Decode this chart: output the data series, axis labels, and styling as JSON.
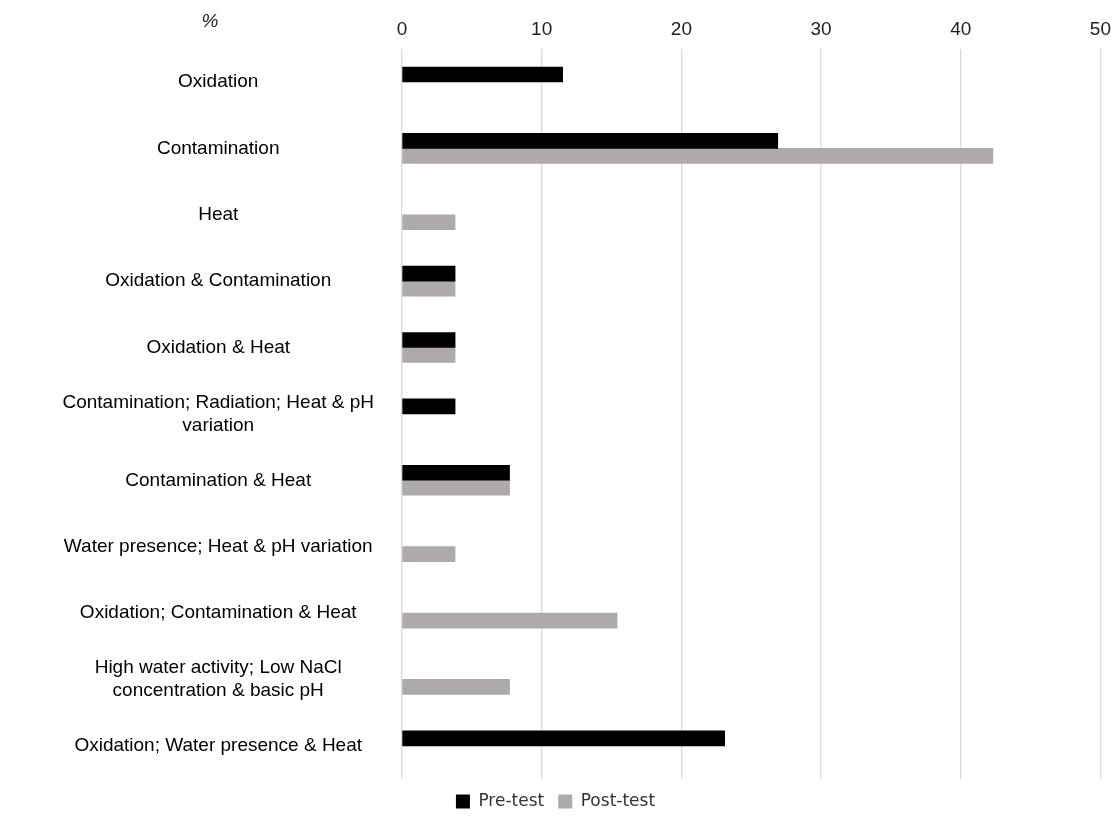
{
  "chart_data": {
    "type": "bar",
    "orientation": "horizontal",
    "xlabel": "%",
    "categories": [
      "Oxidation",
      "Contamination",
      "Heat",
      "Oxidation & Contamination",
      "Oxidation & Heat",
      "Contamination; Radiation; Heat & pH variation",
      "Contamination & Heat",
      "Water presence; Heat & pH variation",
      "Oxidation; Contamination & Heat",
      "High water activity; Low NaCl concentration & basic pH",
      "Oxidation; Water presence & Heat"
    ],
    "series": [
      {
        "name": "Pre-test",
        "color": "#000000",
        "values": [
          11.5,
          26.9,
          null,
          3.8,
          3.8,
          3.8,
          7.7,
          null,
          null,
          null,
          23.1
        ]
      },
      {
        "name": "Post-test",
        "color": "#aeaaaa",
        "values": [
          null,
          42.3,
          3.8,
          3.8,
          3.8,
          null,
          7.7,
          3.8,
          15.4,
          7.7,
          null
        ]
      }
    ],
    "xlim": [
      0,
      50
    ],
    "xticks": [
      0,
      10,
      20,
      30,
      40,
      50
    ],
    "grid": "x",
    "legend": "bottom"
  }
}
